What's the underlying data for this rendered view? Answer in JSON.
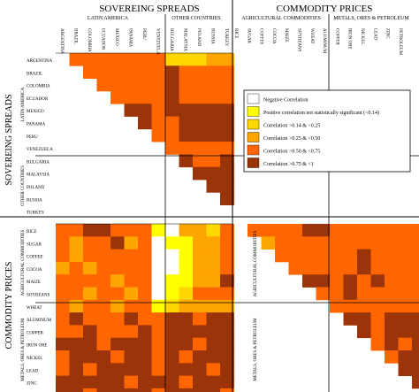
{
  "chart_data": {
    "type": "heatmap",
    "blocks": {
      "sovereign": {
        "label": "SOVEREING SPREADS"
      },
      "commodity": {
        "label": "COMMODITY PRICES"
      }
    },
    "groups": [
      {
        "key": "latam",
        "label": "LATIN AMERICA",
        "block": "sovereign"
      },
      {
        "key": "other",
        "label": "OTHER COUNTRIES",
        "block": "sovereign"
      },
      {
        "key": "agri",
        "label": "AGRICULTURAL COMMODITIES",
        "block": "commodity"
      },
      {
        "key": "metal",
        "label": "METALS, ORES & PETROLEUM",
        "block": "commodity"
      }
    ],
    "variables": [
      {
        "name": "ARGENTINA",
        "group": "latam"
      },
      {
        "name": "BRAZIL",
        "group": "latam"
      },
      {
        "name": "COLOMBIA",
        "group": "latam"
      },
      {
        "name": "ECUADOR",
        "group": "latam"
      },
      {
        "name": "MEXICO",
        "group": "latam"
      },
      {
        "name": "PANAMA",
        "group": "latam"
      },
      {
        "name": "PERU",
        "group": "latam"
      },
      {
        "name": "VENEZUELA",
        "group": "latam"
      },
      {
        "name": "BULGARIA",
        "group": "other"
      },
      {
        "name": "MALAYSIA",
        "group": "other"
      },
      {
        "name": "POLAND",
        "group": "other"
      },
      {
        "name": "RUSSIA",
        "group": "other"
      },
      {
        "name": "TURKEY",
        "group": "other"
      },
      {
        "name": "RICE",
        "group": "agri"
      },
      {
        "name": "SUGAR",
        "group": "agri"
      },
      {
        "name": "COFFEE",
        "group": "agri"
      },
      {
        "name": "COCOA",
        "group": "agri"
      },
      {
        "name": "MAIZE",
        "group": "agri"
      },
      {
        "name": "SOYBEANS",
        "group": "agri"
      },
      {
        "name": "WHEAT",
        "group": "agri"
      },
      {
        "name": "ALUMINUM",
        "group": "metal"
      },
      {
        "name": "COPPER",
        "group": "metal"
      },
      {
        "name": "IRON ORE",
        "group": "metal"
      },
      {
        "name": "NICKEL",
        "group": "metal"
      },
      {
        "name": "LEAD",
        "group": "metal"
      },
      {
        "name": "ZINC",
        "group": "metal"
      },
      {
        "name": "PETROLEUM",
        "group": "metal"
      }
    ],
    "legend": [
      {
        "label": "Negative Correlation",
        "color": "#ffffff"
      },
      {
        "label": "Positive correlation not statistically significant (<0.14)",
        "color": "#ffff00"
      },
      {
        "label": "Correlation >0.14 & <0.25",
        "color": "#ffd700"
      },
      {
        "label": "Correlation >0.25 & <0.50",
        "color": "#ffa500"
      },
      {
        "label": "Correlation >0.50 & <0.75",
        "color": "#ff6600"
      },
      {
        "label": "Correlation >0.75 & <1",
        "color": "#9b3408"
      }
    ],
    "legend_placement": "right-middle",
    "category_colors": [
      "#ffffff",
      "#ffff00",
      "#ffd700",
      "#ffa500",
      "#ff6600",
      "#9b3408"
    ],
    "upper_triangle_categories": [
      [
        4,
        4,
        4,
        4,
        4,
        4,
        4,
        2,
        2,
        2,
        3,
        3
      ],
      [
        4,
        4,
        4,
        4,
        4,
        4,
        5,
        4,
        4,
        4,
        4
      ],
      [
        4,
        4,
        4,
        4,
        4,
        5,
        4,
        4,
        4,
        4
      ],
      [
        4,
        4,
        4,
        4,
        5,
        4,
        4,
        4,
        4
      ],
      [
        5,
        5,
        4,
        5,
        5,
        5,
        5,
        5
      ],
      [
        5,
        4,
        4,
        5,
        5,
        5,
        5
      ],
      [
        4,
        4,
        5,
        5,
        5,
        5
      ],
      [
        4,
        4,
        4,
        4,
        4
      ],
      [
        5,
        4,
        4,
        5
      ],
      [
        5,
        5,
        5
      ],
      [
        5,
        5
      ],
      [
        5
      ],
      [],
      [
        4,
        4,
        4,
        4,
        5,
        5,
        4,
        4,
        4,
        4,
        4,
        4,
        4
      ],
      [
        3,
        4,
        4,
        4,
        4,
        4,
        4,
        4,
        4,
        4,
        4,
        4
      ],
      [
        4,
        4,
        4,
        4,
        4,
        4,
        5,
        4,
        4,
        4,
        4
      ],
      [
        4,
        4,
        4,
        4,
        4,
        5,
        4,
        4,
        4,
        4
      ],
      [
        5,
        5,
        4,
        5,
        4,
        5,
        4,
        4,
        4
      ],
      [
        4,
        4,
        5,
        4,
        4,
        4,
        4,
        4
      ],
      [
        4,
        4,
        4,
        4,
        4,
        4,
        4
      ],
      [
        5,
        5,
        4,
        5,
        5,
        5
      ],
      [
        5,
        4,
        5,
        5,
        5
      ],
      [
        4,
        5,
        4,
        5
      ],
      [
        4,
        5,
        5
      ],
      [
        5,
        5
      ],
      [
        5
      ],
      []
    ],
    "cross_block_categories": [
      [
        4,
        4,
        5,
        5,
        4,
        4,
        4,
        1,
        0,
        3,
        3,
        2,
        4
      ],
      [
        4,
        3,
        4,
        4,
        5,
        3,
        4,
        0,
        1,
        1,
        3,
        3,
        4
      ],
      [
        4,
        3,
        4,
        4,
        4,
        4,
        4,
        0,
        0,
        1,
        3,
        3,
        4
      ],
      [
        3,
        4,
        3,
        4,
        4,
        4,
        4,
        0,
        0,
        1,
        3,
        3,
        4
      ],
      [
        4,
        4,
        4,
        4,
        3,
        4,
        4,
        0,
        1,
        1,
        3,
        3,
        5
      ],
      [
        4,
        4,
        3,
        4,
        4,
        3,
        4,
        0,
        1,
        2,
        4,
        4,
        4
      ],
      [
        4,
        3,
        4,
        4,
        3,
        4,
        4,
        1,
        2,
        3,
        3,
        3,
        3
      ],
      [
        4,
        5,
        4,
        4,
        4,
        5,
        4,
        4,
        5,
        5,
        4,
        5,
        5
      ],
      [
        4,
        4,
        5,
        4,
        4,
        4,
        5,
        4,
        5,
        5,
        5,
        5,
        5
      ],
      [
        5,
        5,
        5,
        4,
        5,
        5,
        5,
        4,
        5,
        5,
        4,
        5,
        5
      ],
      [
        4,
        5,
        5,
        5,
        4,
        5,
        5,
        4,
        5,
        4,
        5,
        5,
        5
      ],
      [
        4,
        5,
        4,
        5,
        5,
        5,
        5,
        4,
        5,
        5,
        5,
        4,
        5
      ],
      [
        5,
        5,
        5,
        5,
        5,
        4,
        5,
        5,
        5,
        4,
        5,
        5,
        5
      ],
      [
        5,
        5,
        4,
        5,
        5,
        5,
        5,
        4,
        5,
        5,
        5,
        5,
        4
      ]
    ]
  }
}
